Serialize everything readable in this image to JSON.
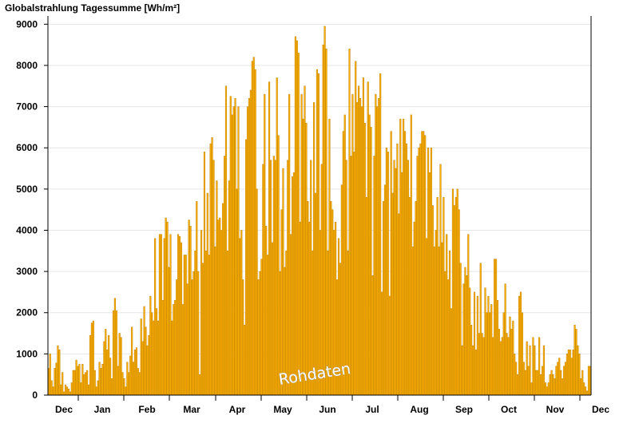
{
  "chart_data": {
    "type": "bar",
    "title": "Globalstrahlung Tagessumme [Wh/m²]",
    "xlabel": "",
    "ylabel": "",
    "ylim": [
      0,
      9200
    ],
    "yticks": [
      "0",
      "1000",
      "2000",
      "3000",
      "4000",
      "5000",
      "6000",
      "7000",
      "8000",
      "9000"
    ],
    "month_labels": [
      "Dec",
      "Jan",
      "Feb",
      "Mar",
      "Apr",
      "May",
      "Jun",
      "Jul",
      "Aug",
      "Sep",
      "Oct",
      "Nov",
      "Dec"
    ],
    "grid": true,
    "bar_color": "#ffb000",
    "bar_edge_color": "#c08000",
    "watermark": "Rohdaten",
    "values": [
      650,
      1000,
      350,
      200,
      650,
      780,
      1200,
      1100,
      250,
      550,
      80,
      250,
      200,
      150,
      80,
      300,
      600,
      600,
      850,
      700,
      750,
      300,
      750,
      500,
      550,
      600,
      250,
      1450,
      1750,
      1800,
      600,
      200,
      350,
      800,
      650,
      750,
      1300,
      1600,
      1100,
      1450,
      900,
      400,
      2050,
      2350,
      2050,
      700,
      1500,
      1400,
      550,
      400,
      200,
      800,
      550,
      950,
      1650,
      800,
      1100,
      1150,
      650,
      550,
      1850,
      1300,
      2150,
      1650,
      1200,
      1450,
      2400,
      2000,
      1800,
      3800,
      2100,
      1800,
      3900,
      3900,
      2300,
      3800,
      4300,
      4200,
      3100,
      3900,
      1800,
      2200,
      2300,
      2800,
      3900,
      3850,
      3700,
      2200,
      3400,
      3400,
      2700,
      4250,
      4100,
      2800,
      3000,
      3500,
      4700,
      3000,
      500,
      4000,
      3200,
      5900,
      3500,
      4900,
      3400,
      6100,
      6250,
      5700,
      3600,
      5200,
      4250,
      4300,
      4000,
      4650,
      5800,
      7500,
      3500,
      5200,
      7250,
      6800,
      7000,
      7200,
      5000,
      7000,
      3800,
      4000,
      2800,
      1700,
      6200,
      7000,
      7200,
      7400,
      8100,
      8200,
      7900,
      5000,
      2800,
      3000,
      3300,
      5600,
      7300,
      4100,
      3400,
      7600,
      5700,
      3700,
      5800,
      5700,
      7700,
      6300,
      3000,
      4500,
      5500,
      3100,
      3500,
      5700,
      7300,
      3900,
      5300,
      5400,
      8700,
      8600,
      8300,
      4200,
      7300,
      6700,
      7500,
      6600,
      4700,
      4200,
      5700,
      3500,
      7100,
      4900,
      7900,
      7800,
      4000,
      5600,
      8500,
      8950,
      8400,
      3500,
      6700,
      4700,
      4500,
      4000,
      4200,
      2800,
      3800,
      3200,
      5100,
      6400,
      6800,
      5700,
      3500,
      8400,
      5800,
      7300,
      5900,
      8100,
      7100,
      7500,
      7200,
      7000,
      7700,
      6600,
      4800,
      7600,
      6800,
      6500,
      2900,
      5800,
      7300,
      7000,
      7200,
      7800,
      2500,
      4700,
      5100,
      6000,
      5900,
      2400,
      6400,
      4900,
      5700,
      5500,
      6100,
      4400,
      6700,
      5400,
      6700,
      6400,
      6100,
      5700,
      4800,
      6800,
      3600,
      4200,
      4700,
      5800,
      6000,
      6100,
      6400,
      6400,
      6300,
      3800,
      6000,
      5400,
      6000,
      4600,
      3600,
      4000,
      4800,
      3600,
      5600,
      3700,
      4800,
      3000,
      3900,
      2800,
      3500,
      2100,
      5000,
      4600,
      4800,
      5000,
      4500,
      3200,
      1200,
      2700,
      3100,
      2900,
      3900,
      2600,
      1700,
      1200,
      2500,
      1100,
      2400,
      1500,
      3200,
      1500,
      1400,
      2600,
      2000,
      2400,
      2000,
      2200,
      1400,
      3300,
      3300,
      2300,
      1600,
      1300,
      1400,
      2000,
      2700,
      1500,
      1400,
      1900,
      1600,
      1800,
      1000,
      800,
      500,
      2400,
      2500,
      2000,
      800,
      600,
      1300,
      700,
      1200,
      300,
      1400,
      1200,
      600,
      600,
      1400,
      500,
      700,
      1200,
      300,
      200,
      300,
      500,
      600,
      500,
      400,
      700,
      800,
      900,
      600,
      400,
      700,
      800,
      1000,
      1100,
      1100,
      900,
      1100,
      1700,
      1600,
      1200,
      1000,
      400,
      600,
      300,
      200,
      100,
      700,
      700
    ]
  }
}
